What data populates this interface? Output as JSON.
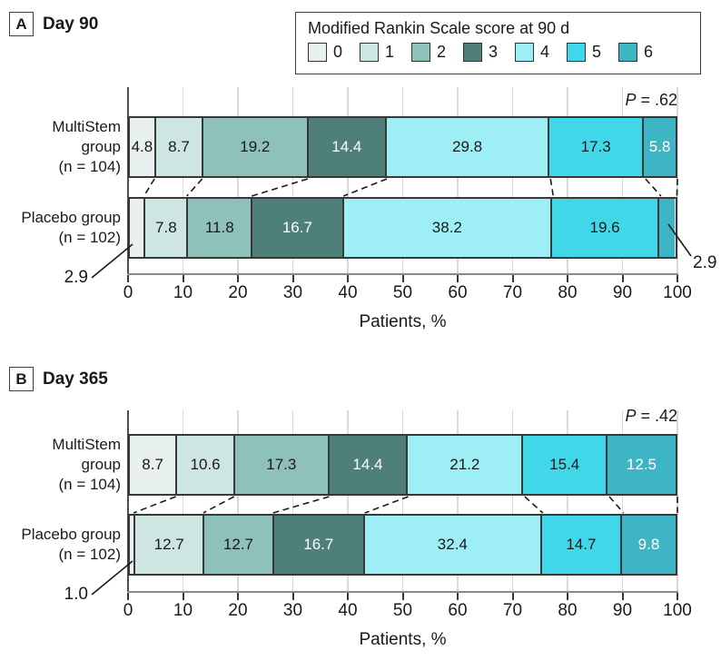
{
  "legend": {
    "title": "Modified Rankin Scale score at 90 d",
    "items": [
      {
        "label": "0",
        "color": "#e8f1f0"
      },
      {
        "label": "1",
        "color": "#cde6e2"
      },
      {
        "label": "2",
        "color": "#8ec1ba"
      },
      {
        "label": "3",
        "color": "#4e8079"
      },
      {
        "label": "4",
        "color": "#9deff5"
      },
      {
        "label": "5",
        "color": "#40d8e9"
      },
      {
        "label": "6",
        "color": "#3db5c4"
      }
    ]
  },
  "colors": {
    "grid": "#d9d9d9",
    "zero_gridline": "#4d4d4d",
    "axis_line": "#8a8a8a",
    "bar_border": "#383838",
    "connector": "#1a1a1a",
    "text": "#1a1a1a"
  },
  "chart_data": [
    {
      "type": "bar",
      "stacked": true,
      "orientation": "horizontal",
      "panel": "A",
      "title": "Day 90",
      "p_label_italic": "P",
      "p_label_rest": " = .62",
      "legend_title": "Modified Rankin Scale score at 90 d",
      "legend_position": "top-right",
      "categories": [
        "MultiStem group (n = 104)",
        "Placebo group (n = 102)"
      ],
      "category_label_lines": [
        [
          "MultiStem",
          "group",
          "(n = 104)"
        ],
        [
          "Placebo group",
          "(n = 102)"
        ]
      ],
      "series": [
        {
          "name": "0",
          "color": "#e8f1f0",
          "label_color": "#1a1a1a",
          "values": [
            4.8,
            2.9
          ]
        },
        {
          "name": "1",
          "color": "#cde6e2",
          "label_color": "#1a1a1a",
          "values": [
            8.7,
            7.8
          ]
        },
        {
          "name": "2",
          "color": "#8ec1ba",
          "label_color": "#1a1a1a",
          "values": [
            19.2,
            11.8
          ]
        },
        {
          "name": "3",
          "color": "#4e8079",
          "label_color": "#ffffff",
          "values": [
            14.4,
            16.7
          ]
        },
        {
          "name": "4",
          "color": "#9deff5",
          "label_color": "#1a1a1a",
          "values": [
            29.8,
            38.2
          ]
        },
        {
          "name": "5",
          "color": "#40d8e9",
          "label_color": "#1a1a1a",
          "values": [
            17.3,
            19.6
          ]
        },
        {
          "name": "6",
          "color": "#3db5c4",
          "label_color": "#ffffff",
          "values": [
            5.8,
            2.9
          ]
        }
      ],
      "hidden_inside_labels": [
        [
          1,
          0
        ],
        [
          1,
          6
        ]
      ],
      "callouts": [
        {
          "row": 1,
          "series_index": 0,
          "text": "2.9",
          "side": "left"
        },
        {
          "row": 1,
          "series_index": 6,
          "text": "2.9",
          "side": "right"
        }
      ],
      "xlabel": "Patients, %",
      "xlim": [
        0,
        100
      ],
      "xticks": [
        0,
        10,
        20,
        30,
        40,
        50,
        60,
        70,
        80,
        90,
        100
      ],
      "grid": true
    },
    {
      "type": "bar",
      "stacked": true,
      "orientation": "horizontal",
      "panel": "B",
      "title": "Day 365",
      "p_label_italic": "P",
      "p_label_rest": " = .42",
      "legend_title": "Modified Rankin Scale score at 90 d",
      "legend_position": "shared-top-right",
      "categories": [
        "MultiStem group (n = 104)",
        "Placebo group (n = 102)"
      ],
      "category_label_lines": [
        [
          "MultiStem",
          "group",
          "(n = 104)"
        ],
        [
          "Placebo group",
          "(n = 102)"
        ]
      ],
      "series": [
        {
          "name": "0",
          "color": "#e8f1f0",
          "label_color": "#1a1a1a",
          "values": [
            8.7,
            1.0
          ]
        },
        {
          "name": "1",
          "color": "#cde6e2",
          "label_color": "#1a1a1a",
          "values": [
            10.6,
            12.7
          ]
        },
        {
          "name": "2",
          "color": "#8ec1ba",
          "label_color": "#1a1a1a",
          "values": [
            17.3,
            12.7
          ]
        },
        {
          "name": "3",
          "color": "#4e8079",
          "label_color": "#ffffff",
          "values": [
            14.4,
            16.7
          ]
        },
        {
          "name": "4",
          "color": "#9deff5",
          "label_color": "#1a1a1a",
          "values": [
            21.2,
            32.4
          ]
        },
        {
          "name": "5",
          "color": "#40d8e9",
          "label_color": "#1a1a1a",
          "values": [
            15.4,
            14.7
          ]
        },
        {
          "name": "6",
          "color": "#3db5c4",
          "label_color": "#ffffff",
          "values": [
            12.5,
            9.8
          ]
        }
      ],
      "hidden_inside_labels": [
        [
          1,
          0
        ]
      ],
      "callouts": [
        {
          "row": 1,
          "series_index": 0,
          "text": "1.0",
          "side": "left"
        }
      ],
      "xlabel": "Patients, %",
      "xlim": [
        0,
        100
      ],
      "xticks": [
        0,
        10,
        20,
        30,
        40,
        50,
        60,
        70,
        80,
        90,
        100
      ],
      "grid": true
    }
  ]
}
